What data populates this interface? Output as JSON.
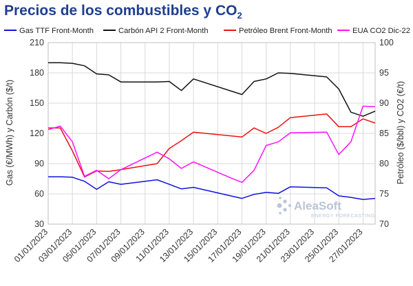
{
  "title": {
    "text": "Precios de los combustibles y CO",
    "sub": "2"
  },
  "watermark": {
    "brand": "AleaSoft",
    "tagline": "ENERGY FORECASTING"
  },
  "chart_data": {
    "type": "line",
    "xlabel": "",
    "ylabel": "Gas (€/MWh) y Carbón ($/t)",
    "y2label": "Petróleo ($/bbl) y CO2 (€/t)",
    "ylim": [
      30,
      210
    ],
    "y2lim": [
      70,
      100
    ],
    "yticks": [
      30,
      60,
      90,
      120,
      150,
      180,
      210
    ],
    "y2ticks": [
      70,
      75,
      80,
      85,
      90,
      95,
      100
    ],
    "x_range": [
      "2023-01-01",
      "2023-01-28"
    ],
    "xticks": [
      "01/01/2023",
      "03/01/2023",
      "05/01/2023",
      "07/01/2023",
      "09/01/2023",
      "11/01/2023",
      "13/01/2023",
      "15/01/2023",
      "17/01/2023",
      "19/01/2023",
      "21/01/2023",
      "23/01/2023",
      "25/01/2023",
      "27/01/2023"
    ],
    "grid": true,
    "legend_position": "top",
    "series": [
      {
        "name": "Gas TTF Front-Month",
        "axis": "left",
        "color": "#1010e0",
        "x": [
          "2023-01-01",
          "2023-01-02",
          "2023-01-03",
          "2023-01-04",
          "2023-01-05",
          "2023-01-06",
          "2023-01-07",
          "2023-01-10",
          "2023-01-11",
          "2023-01-12",
          "2023-01-13",
          "2023-01-17",
          "2023-01-18",
          "2023-01-19",
          "2023-01-20",
          "2023-01-21",
          "2023-01-24",
          "2023-01-25",
          "2023-01-26",
          "2023-01-27",
          "2023-01-28"
        ],
        "values": [
          77,
          77,
          76.5,
          72.5,
          64.5,
          72,
          69.5,
          74,
          69.5,
          65,
          66.5,
          55.5,
          59.5,
          61.5,
          60.5,
          67,
          66,
          58,
          56.5,
          54.5,
          55.5
        ]
      },
      {
        "name": "Carbón API 2 Front-Month",
        "axis": "left",
        "color": "#111111",
        "x": [
          "2023-01-01",
          "2023-01-02",
          "2023-01-03",
          "2023-01-04",
          "2023-01-05",
          "2023-01-06",
          "2023-01-07",
          "2023-01-10",
          "2023-01-11",
          "2023-01-12",
          "2023-01-13",
          "2023-01-17",
          "2023-01-18",
          "2023-01-19",
          "2023-01-20",
          "2023-01-21",
          "2023-01-24",
          "2023-01-25",
          "2023-01-26",
          "2023-01-27",
          "2023-01-28"
        ],
        "values": [
          190,
          190,
          189.5,
          187,
          179,
          178,
          171,
          171,
          171.5,
          162.5,
          174,
          158.5,
          171.5,
          174,
          180,
          179.5,
          176,
          164,
          141,
          137,
          142
        ]
      },
      {
        "name": "Petróleo Brent Front-Month",
        "axis": "right",
        "color": "#ee1010",
        "x": [
          "2023-01-01",
          "2023-01-02",
          "2023-01-03",
          "2023-01-04",
          "2023-01-05",
          "2023-01-06",
          "2023-01-07",
          "2023-01-10",
          "2023-01-11",
          "2023-01-12",
          "2023-01-13",
          "2023-01-17",
          "2023-01-18",
          "2023-01-19",
          "2023-01-20",
          "2023-01-21",
          "2023-01-24",
          "2023-01-25",
          "2023-01-26",
          "2023-01-27",
          "2023-01-28"
        ],
        "values": [
          85.9,
          85.9,
          82.1,
          77.8,
          78.8,
          78.7,
          79,
          80,
          82.5,
          83.8,
          85.2,
          84.4,
          85.9,
          85,
          86,
          87.6,
          88.2,
          86.1,
          86.1,
          87.4,
          86.7
        ]
      },
      {
        "name": "EUA CO2 Dic-22",
        "axis": "right",
        "color": "#ff10ff",
        "x": [
          "2023-01-01",
          "2023-01-02",
          "2023-01-03",
          "2023-01-04",
          "2023-01-05",
          "2023-01-06",
          "2023-01-07",
          "2023-01-10",
          "2023-01-11",
          "2023-01-12",
          "2023-01-13",
          "2023-01-16",
          "2023-01-17",
          "2023-01-18",
          "2023-01-19",
          "2023-01-20",
          "2023-01-21",
          "2023-01-24",
          "2023-01-25",
          "2023-01-26",
          "2023-01-27",
          "2023-01-28"
        ],
        "values": [
          85.6,
          86.2,
          83.6,
          77.9,
          78.9,
          77.5,
          79,
          81.9,
          80.8,
          79.2,
          80.3,
          77.7,
          76.9,
          78.9,
          83,
          83.6,
          85.1,
          85.2,
          81.5,
          83.6,
          89.5,
          89.4
        ]
      }
    ]
  }
}
